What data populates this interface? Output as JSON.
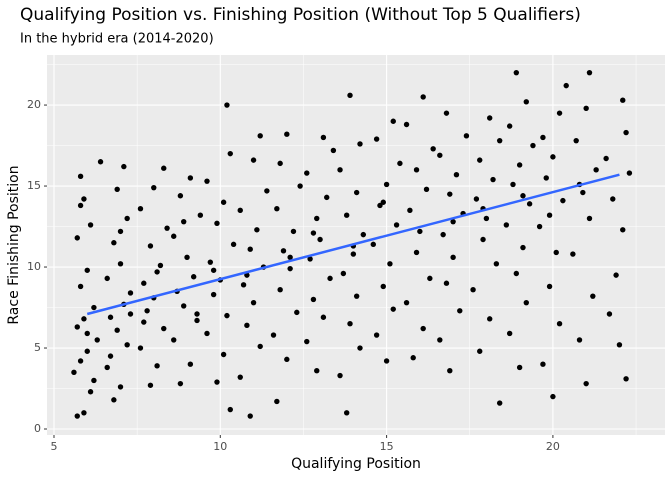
{
  "chart_data": {
    "type": "scatter",
    "title": "Qualifying Position vs. Finishing Position (Without Top 5 Qualifiers)",
    "subtitle": "In the hybrid era (2014-2020)",
    "x_label": "Qualifying Position",
    "y_label": "Race Finishing Position",
    "color": "#000000",
    "grid": true,
    "xlim": [
      4.79,
      23.37
    ],
    "ylim": [
      -0.37,
      23.09
    ],
    "xticks": [
      5,
      10,
      15,
      20
    ],
    "yticks": [
      0,
      5,
      10,
      15,
      20
    ],
    "xminorticks": [
      7.5,
      12.5,
      17.5,
      22.5
    ],
    "yminorticks": [
      2.5,
      7.5,
      12.5,
      17.5,
      22.5
    ],
    "x": [
      5.7,
      5.9,
      6.1,
      5.6,
      5.8,
      6.0,
      6.3,
      5.7,
      5.9,
      6.2,
      5.8,
      6.0,
      5.7,
      6.1,
      5.9,
      5.8,
      6.4,
      6.2,
      6.0,
      5.8,
      6.8,
      7.0,
      6.6,
      7.2,
      6.9,
      6.7,
      7.1,
      7.3,
      6.6,
      7.0,
      6.8,
      7.2,
      6.9,
      7.1,
      6.7,
      7.3,
      7.0,
      7.9,
      8.1,
      7.6,
      8.3,
      7.8,
      8.0,
      7.7,
      8.2,
      7.9,
      8.4,
      7.6,
      8.0,
      8.3,
      7.7,
      8.1,
      8.8,
      9.1,
      8.6,
      9.3,
      8.9,
      8.7,
      9.2,
      9.0,
      8.6,
      9.4,
      8.8,
      9.1,
      9.3,
      8.9,
      10.3,
      9.9,
      10.1,
      9.6,
      10.2,
      9.8,
      10.0,
      9.7,
      10.4,
      9.9,
      10.1,
      9.6,
      10.3,
      10.2,
      9.8,
      10.9,
      10.6,
      11.2,
      10.8,
      11.0,
      10.7,
      11.3,
      10.9,
      11.1,
      10.6,
      11.4,
      11.0,
      11.2,
      10.8,
      11.7,
      12.0,
      11.6,
      12.3,
      11.8,
      12.1,
      11.9,
      12.2,
      11.7,
      12.4,
      11.8,
      12.0,
      12.1,
      12.9,
      12.6,
      13.1,
      12.8,
      13.3,
      12.7,
      13.0,
      12.9,
      13.2,
      12.6,
      13.4,
      13.1,
      12.8,
      13.8,
      13.6,
      14.2,
      13.9,
      14.1,
      13.7,
      14.0,
      14.3,
      13.8,
      14.1,
      13.6,
      14.2,
      13.9,
      14.0,
      15.0,
      14.7,
      15.2,
      14.9,
      15.1,
      14.6,
      15.3,
      14.8,
      15.0,
      15.4,
      14.7,
      15.2,
      14.9,
      15.8,
      16.1,
      15.6,
      16.3,
      15.9,
      16.0,
      15.7,
      16.2,
      15.9,
      16.4,
      15.6,
      16.1,
      16.9,
      16.6,
      17.2,
      16.8,
      17.0,
      16.7,
      17.3,
      16.9,
      17.1,
      16.6,
      17.4,
      16.8,
      17.0,
      18.4,
      17.8,
      18.1,
      17.6,
      18.3,
      17.9,
      18.0,
      17.7,
      18.2,
      17.8,
      18.4,
      18.1,
      17.9,
      19.0,
      18.7,
      19.2,
      18.9,
      19.1,
      18.6,
      19.3,
      18.8,
      19.0,
      19.4,
      18.7,
      19.2,
      18.9,
      19.1,
      20.0,
      19.7,
      20.2,
      19.9,
      20.1,
      19.6,
      20.3,
      19.8,
      20.0,
      19.7,
      20.2,
      20.4,
      19.9,
      21.0,
      20.8,
      21.2,
      20.6,
      21.1,
      20.9,
      21.3,
      20.7,
      21.0,
      21.1,
      20.8,
      22.2,
      22.0,
      21.7,
      21.9,
      22.1,
      21.8,
      22.3,
      22.2,
      22.1,
      21.6
    ],
    "values": [
      0.8,
      1.0,
      2.3,
      3.5,
      4.2,
      4.8,
      5.5,
      6.3,
      6.8,
      7.5,
      8.8,
      9.8,
      11.8,
      12.6,
      14.2,
      15.6,
      16.5,
      3.0,
      5.9,
      13.8,
      1.8,
      2.6,
      3.8,
      5.2,
      6.1,
      6.9,
      7.7,
      8.4,
      9.3,
      10.2,
      11.5,
      13.0,
      14.8,
      16.2,
      4.5,
      7.1,
      12.2,
      2.7,
      3.9,
      5.0,
      6.2,
      7.3,
      8.1,
      9.0,
      10.1,
      11.3,
      12.4,
      13.6,
      14.9,
      16.1,
      6.6,
      9.7,
      2.8,
      4.0,
      5.5,
      6.7,
      7.6,
      8.5,
      9.4,
      10.6,
      11.9,
      13.2,
      14.4,
      15.5,
      7.1,
      12.8,
      1.2,
      2.9,
      4.6,
      5.9,
      7.0,
      8.3,
      9.2,
      10.3,
      11.4,
      12.7,
      14.0,
      15.3,
      17.0,
      20.0,
      9.8,
      0.8,
      3.2,
      5.1,
      6.4,
      7.8,
      8.9,
      10.0,
      11.1,
      12.3,
      13.5,
      14.7,
      16.6,
      18.1,
      9.5,
      1.7,
      4.3,
      5.8,
      7.2,
      8.6,
      9.9,
      11.0,
      12.2,
      13.6,
      15.0,
      16.4,
      18.2,
      10.6,
      3.6,
      5.4,
      6.9,
      8.0,
      9.3,
      10.5,
      11.7,
      13.0,
      14.3,
      15.8,
      17.2,
      18.0,
      12.1,
      1.0,
      3.3,
      5.0,
      6.5,
      8.2,
      9.6,
      10.8,
      12.0,
      13.2,
      14.6,
      16.0,
      17.6,
      20.6,
      11.3,
      4.2,
      5.8,
      7.4,
      8.8,
      10.2,
      11.4,
      12.6,
      13.8,
      15.1,
      16.4,
      17.9,
      19.0,
      14.0,
      4.4,
      6.2,
      7.8,
      9.3,
      10.9,
      12.2,
      13.5,
      14.8,
      16.0,
      17.3,
      18.8,
      20.5,
      3.6,
      5.5,
      7.3,
      9.0,
      10.6,
      12.0,
      13.3,
      14.5,
      15.7,
      16.9,
      18.1,
      19.5,
      12.8,
      1.6,
      4.8,
      6.8,
      8.6,
      10.2,
      11.7,
      13.0,
      14.2,
      15.4,
      16.6,
      17.8,
      19.2,
      13.6,
      3.8,
      5.9,
      7.8,
      9.6,
      11.2,
      12.6,
      13.9,
      15.1,
      16.3,
      17.5,
      18.7,
      20.2,
      22.0,
      14.4,
      2.0,
      4.0,
      6.5,
      8.8,
      10.9,
      12.5,
      14.1,
      15.5,
      16.8,
      18.0,
      19.5,
      21.2,
      13.2,
      2.8,
      5.5,
      8.2,
      10.8,
      13.0,
      14.6,
      16.0,
      17.8,
      19.8,
      22.0,
      15.1,
      3.1,
      5.2,
      7.1,
      9.5,
      12.3,
      14.2,
      15.8,
      18.3,
      20.3,
      16.7
    ],
    "trend": {
      "x": [
        6,
        22
      ],
      "values": [
        7.1,
        15.7
      ],
      "color": "#3366ff"
    }
  }
}
